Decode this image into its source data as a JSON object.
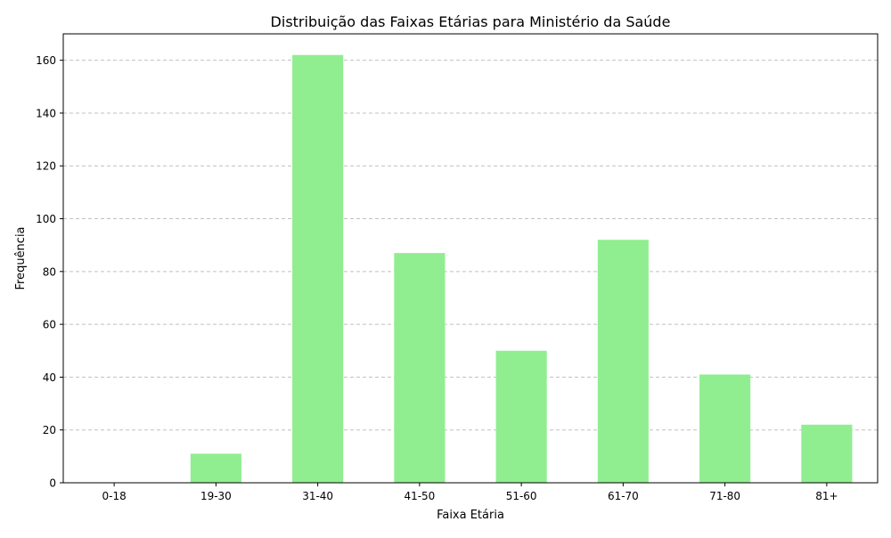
{
  "chart_data": {
    "type": "bar",
    "title": "Distribuição das Faixas Etárias para Ministério da Saúde",
    "xlabel": "Faixa Etária",
    "ylabel": "Frequência",
    "categories": [
      "0-18",
      "19-30",
      "31-40",
      "41-50",
      "51-60",
      "61-70",
      "71-80",
      "81+"
    ],
    "values": [
      0,
      11,
      162,
      87,
      50,
      92,
      41,
      22
    ],
    "ylim": [
      0,
      170
    ],
    "yticks": [
      0,
      20,
      40,
      60,
      80,
      100,
      120,
      140,
      160
    ],
    "grid": "y-dashed",
    "bar_color": "#90ee90",
    "legend": "none"
  }
}
